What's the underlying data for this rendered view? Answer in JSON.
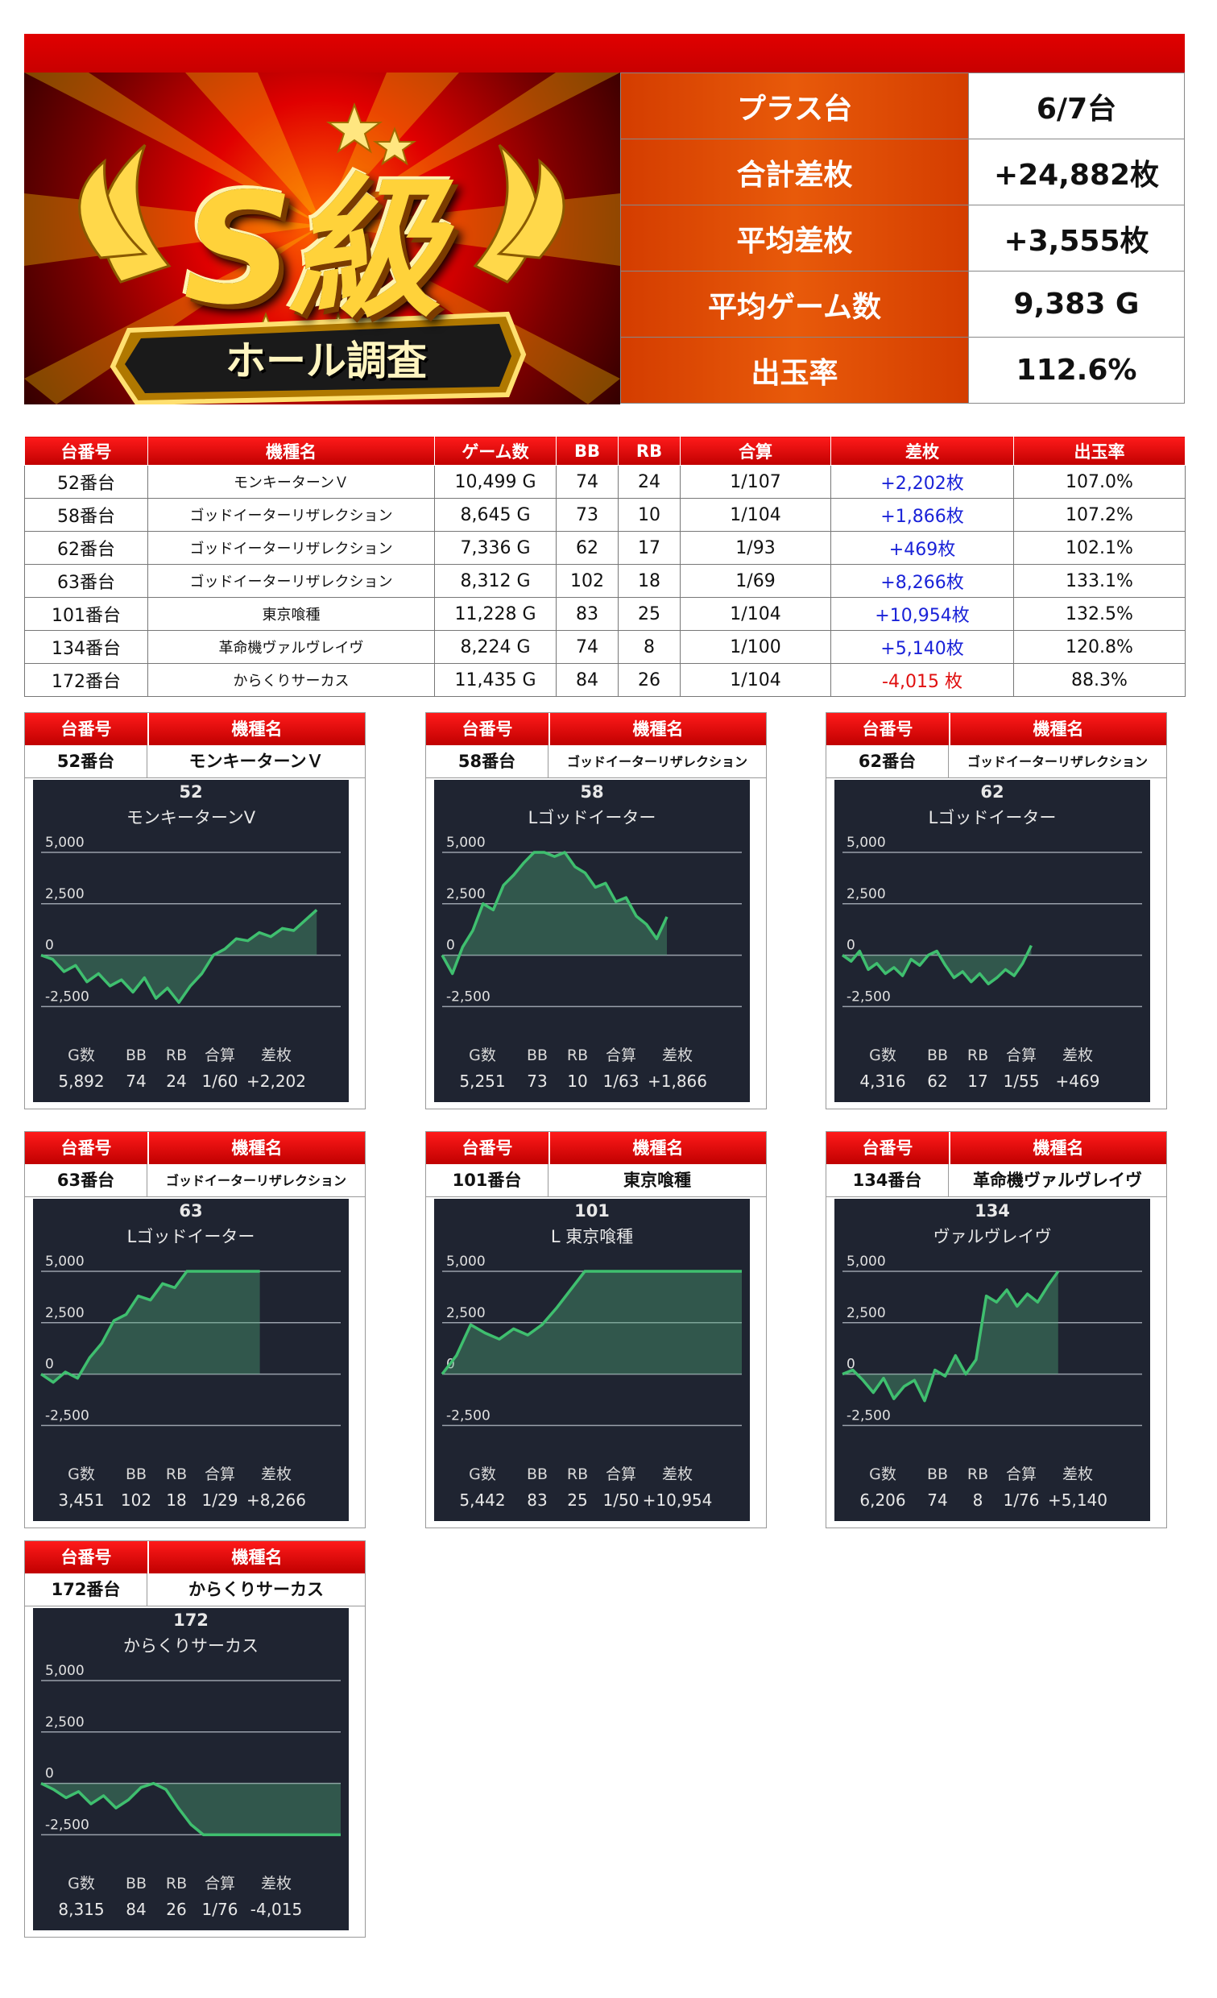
{
  "banner": {
    "logo_main": "S級",
    "logo_sub": "ホール調査"
  },
  "colors": {
    "red": "#d90000",
    "orange": "#e05208",
    "plus": "#1a23d8",
    "minus": "#e01010",
    "line": "#3fbf6f",
    "panel": "#1f2431"
  },
  "summary": [
    {
      "label": "プラス台",
      "value": "6/7台"
    },
    {
      "label": "合計差枚",
      "value": "+24,882枚"
    },
    {
      "label": "平均差枚",
      "value": "+3,555枚"
    },
    {
      "label": "平均ゲーム数",
      "value": "9,383 G"
    },
    {
      "label": "出玉率",
      "value": "112.6%"
    }
  ],
  "table": {
    "headers": [
      "台番号",
      "機種名",
      "ゲーム数",
      "BB",
      "RB",
      "合算",
      "差枚",
      "出玉率"
    ],
    "rows": [
      [
        "52番台",
        "モンキーターンＶ",
        "10,499 G",
        "74",
        "24",
        "1/107",
        "+2,202枚",
        "107.0%"
      ],
      [
        "58番台",
        "ゴッドイーターリザレクション",
        "8,645 G",
        "73",
        "10",
        "1/104",
        "+1,866枚",
        "107.2%"
      ],
      [
        "62番台",
        "ゴッドイーターリザレクション",
        "7,336 G",
        "62",
        "17",
        "1/93",
        "+469枚",
        "102.1%"
      ],
      [
        "63番台",
        "ゴッドイーターリザレクション",
        "8,312 G",
        "102",
        "18",
        "1/69",
        "+8,266枚",
        "133.1%"
      ],
      [
        "101番台",
        "東京喰種",
        "11,228 G",
        "83",
        "25",
        "1/104",
        "+10,954枚",
        "132.5%"
      ],
      [
        "134番台",
        "革命機ヴァルヴレイヴ",
        "8,224 G",
        "74",
        "8",
        "1/100",
        "+5,140枚",
        "120.8%"
      ],
      [
        "172番台",
        "からくりサーカス",
        "11,435 G",
        "84",
        "26",
        "1/104",
        "-4,015 枚",
        "88.3%"
      ]
    ]
  },
  "card_headers": {
    "unit": "台番号",
    "machine": "機種名"
  },
  "stat_labels": [
    "G数",
    "BB",
    "RB",
    "合算",
    "差枚"
  ],
  "charts": [
    {
      "unit": "52番台",
      "machine": "モンキーターンＶ",
      "num": "52",
      "name": "モンキーターンV",
      "yticks": [
        "5,000",
        "2,500",
        "0",
        "-2,500"
      ],
      "stats": [
        "5,892",
        "74",
        "24",
        "1/60",
        "+2,202"
      ],
      "chart_data": {
        "type": "area",
        "ylim": [
          -2500,
          5000
        ],
        "x_end": 0.92,
        "y": [
          0,
          -200,
          -800,
          -500,
          -1300,
          -900,
          -1500,
          -1200,
          -1800,
          -1100,
          -2100,
          -1600,
          -2300,
          -1500,
          -900,
          0,
          300,
          800,
          700,
          1100,
          900,
          1300,
          1200,
          1700,
          2202
        ]
      }
    },
    {
      "unit": "58番台",
      "machine": "ゴッドイーターリザレクション",
      "num": "58",
      "name": "Lゴッドイーター",
      "yticks": [
        "5,000",
        "2,500",
        "0",
        "-2,500"
      ],
      "stats": [
        "5,251",
        "73",
        "10",
        "1/63",
        "+1,866"
      ],
      "chart_data": {
        "type": "area",
        "ylim": [
          -2500,
          5000
        ],
        "x_end": 0.75,
        "y": [
          0,
          -900,
          400,
          1200,
          2500,
          2200,
          3400,
          3900,
          4500,
          5000,
          5000,
          4800,
          5000,
          4300,
          4000,
          3300,
          3500,
          2600,
          2800,
          1900,
          1500,
          800,
          1866
        ]
      }
    },
    {
      "unit": "62番台",
      "machine": "ゴッドイーターリザレクション",
      "num": "62",
      "name": "Lゴッドイーター",
      "yticks": [
        "5,000",
        "2,500",
        "0",
        "-2,500"
      ],
      "stats": [
        "4,316",
        "62",
        "17",
        "1/55",
        "+469"
      ],
      "chart_data": {
        "type": "area",
        "ylim": [
          -2500,
          5000
        ],
        "x_end": 0.63,
        "y": [
          0,
          -300,
          200,
          -700,
          -400,
          -900,
          -600,
          -1000,
          -200,
          -500,
          0,
          200,
          -500,
          -1100,
          -800,
          -1300,
          -900,
          -1400,
          -1100,
          -700,
          -1000,
          -400,
          469
        ]
      }
    },
    {
      "unit": "63番台",
      "machine": "ゴッドイーターリザレクション",
      "num": "63",
      "name": "Lゴッドイーター",
      "yticks": [
        "5,000",
        "2,500",
        "0",
        "-2,500"
      ],
      "stats": [
        "3,451",
        "102",
        "18",
        "1/29",
        "+8,266"
      ],
      "chart_data": {
        "type": "area",
        "ylim": [
          -2500,
          5000
        ],
        "x_end": 0.73,
        "y": [
          0,
          -400,
          100,
          -200,
          800,
          1500,
          2600,
          2900,
          3800,
          3600,
          4400,
          4200,
          5000,
          5000,
          5000,
          5000,
          5000,
          5000,
          5000
        ]
      }
    },
    {
      "unit": "101番台",
      "machine": "東京喰種",
      "num": "101",
      "name": "L 東京喰種",
      "yticks": [
        "5,000",
        "2,500",
        "0",
        "-2,500"
      ],
      "stats": [
        "5,442",
        "83",
        "25",
        "1/50",
        "+10,954"
      ],
      "chart_data": {
        "type": "area",
        "ylim": [
          -2500,
          5000
        ],
        "x_end": 1.0,
        "y": [
          0,
          900,
          2400,
          2000,
          1700,
          2200,
          1900,
          2400,
          3200,
          4100,
          5000,
          5000,
          5000,
          5000,
          5000,
          5000,
          5000,
          5000,
          5000,
          5000,
          5000,
          5000
        ]
      }
    },
    {
      "unit": "134番台",
      "machine": "革命機ヴァルヴレイヴ",
      "num": "134",
      "name": "ヴァルヴレイヴ",
      "yticks": [
        "5,000",
        "2,500",
        "0",
        "-2,500"
      ],
      "stats": [
        "6,206",
        "74",
        "8",
        "1/76",
        "+5,140"
      ],
      "chart_data": {
        "type": "area",
        "ylim": [
          -2500,
          5000
        ],
        "x_end": 0.72,
        "y": [
          0,
          200,
          -300,
          -900,
          -200,
          -1200,
          -600,
          -300,
          -1300,
          200,
          -100,
          900,
          0,
          700,
          3800,
          3500,
          4100,
          3300,
          3900,
          3500,
          4300,
          5140
        ]
      }
    },
    {
      "unit": "172番台",
      "machine": "からくりサーカス",
      "num": "172",
      "name": "からくりサーカス",
      "yticks": [
        "5,000",
        "2,500",
        "0",
        "-2,500"
      ],
      "stats": [
        "8,315",
        "84",
        "26",
        "1/76",
        "-4,015"
      ],
      "chart_data": {
        "type": "area",
        "ylim": [
          -2500,
          5000
        ],
        "x_end": 1.0,
        "y": [
          0,
          -300,
          -700,
          -400,
          -1000,
          -600,
          -1200,
          -800,
          -200,
          0,
          -300,
          -1200,
          -2000,
          -2500,
          -2500,
          -2500,
          -2500,
          -2500,
          -2500,
          -2500,
          -2500,
          -2500,
          -2500,
          -2500,
          -2500
        ]
      }
    }
  ]
}
